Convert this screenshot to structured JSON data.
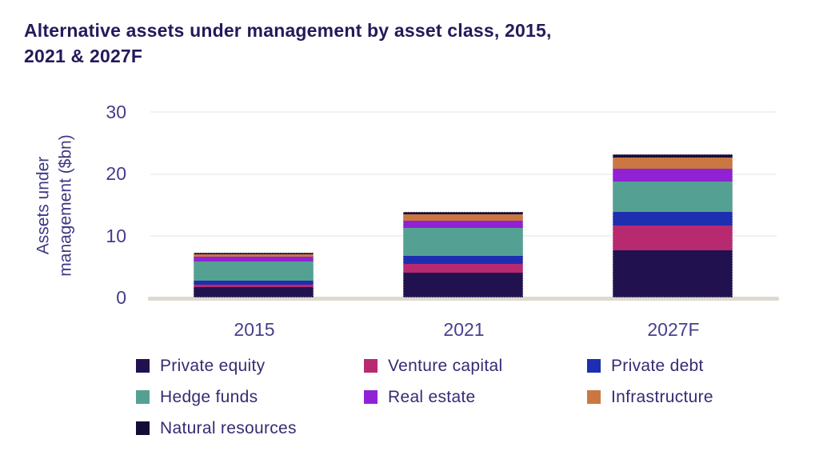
{
  "title": {
    "line1": "Alternative assets under management by asset class, 2015,",
    "line2": "2021 & 2027F"
  },
  "y_axis": {
    "label_line1": "Assets under",
    "label_line2": "management ($bn)",
    "ticks": [
      "30",
      "20",
      "10",
      "0"
    ]
  },
  "x_axis": {
    "categories": [
      "2015",
      "2021",
      "2027F"
    ]
  },
  "chart_data": {
    "type": "bar",
    "stacked": true,
    "title": "Alternative assets under management by asset class, 2015, 2021 & 2027F",
    "ylabel": "Assets under management ($bn)",
    "xlabel": "",
    "ylim": [
      0,
      30
    ],
    "ytick_interval": 10,
    "grid": true,
    "legend_position": "bottom",
    "categories": [
      "2015",
      "2021",
      "2027F"
    ],
    "series": [
      {
        "name": "Private equity",
        "color": "#21124f",
        "values": [
          1.7,
          4.0,
          7.6
        ]
      },
      {
        "name": "Venture capital",
        "color": "#b72a70",
        "values": [
          0.4,
          1.4,
          4.0
        ]
      },
      {
        "name": "Private debt",
        "color": "#1e2eb0",
        "values": [
          0.6,
          1.3,
          2.2
        ]
      },
      {
        "name": "Hedge funds",
        "color": "#54a193",
        "values": [
          3.2,
          4.5,
          5.0
        ]
      },
      {
        "name": "Real estate",
        "color": "#9022d4",
        "values": [
          0.7,
          1.2,
          2.0
        ]
      },
      {
        "name": "Infrastructure",
        "color": "#cb7742",
        "values": [
          0.4,
          1.0,
          1.8
        ]
      },
      {
        "name": "Natural resources",
        "color": "#160d36",
        "values": [
          0.3,
          0.4,
          0.5
        ]
      }
    ],
    "totals": [
      7.3,
      13.8,
      23.1
    ]
  }
}
